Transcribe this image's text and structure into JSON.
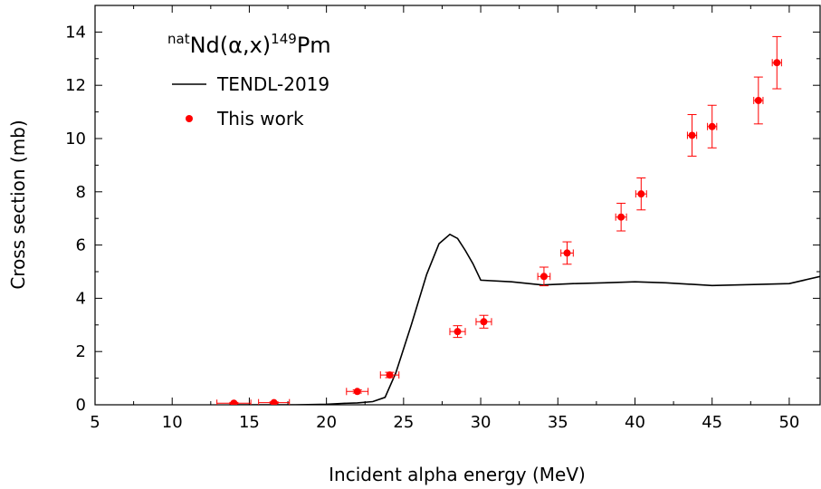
{
  "chart_data": {
    "type": "scatter",
    "title": {
      "pre_sup": "nat",
      "main1": "Nd(α,x)",
      "mid_sup": "149",
      "main2": "Pm"
    },
    "xlabel": "Incident alpha energy (MeV)",
    "ylabel": "Cross section (mb)",
    "xlim": [
      5,
      52
    ],
    "ylim": [
      0,
      15
    ],
    "x_ticks": [
      5,
      10,
      15,
      20,
      25,
      30,
      35,
      40,
      45,
      50
    ],
    "y_ticks": [
      0,
      2,
      4,
      6,
      8,
      10,
      12,
      14
    ],
    "grid": false,
    "legend_position": "top-left",
    "series": [
      {
        "name": "TENDL-2019",
        "kind": "line",
        "color": "#000000",
        "x": [
          14,
          16,
          18,
          20,
          21,
          22,
          23,
          23.8,
          24.5,
          25.5,
          26.5,
          27.3,
          28,
          28.5,
          29,
          29.5,
          30,
          32,
          34,
          36,
          38,
          40,
          42,
          45,
          48,
          50,
          52
        ],
        "y": [
          0,
          0,
          0,
          0.02,
          0.05,
          0.07,
          0.12,
          0.28,
          1.2,
          3.0,
          4.9,
          6.05,
          6.4,
          6.25,
          5.8,
          5.3,
          4.68,
          4.62,
          4.5,
          4.55,
          4.58,
          4.62,
          4.58,
          4.48,
          4.52,
          4.55,
          4.82
        ]
      },
      {
        "name": "This work",
        "kind": "points",
        "color": "#ff0000",
        "points": [
          {
            "x": 14.0,
            "y": 0.06,
            "xerr": 1.1,
            "yerr": 0.03
          },
          {
            "x": 16.6,
            "y": 0.08,
            "xerr": 1.0,
            "yerr": 0.03
          },
          {
            "x": 22.0,
            "y": 0.5,
            "xerr": 0.7,
            "yerr": 0.06
          },
          {
            "x": 24.1,
            "y": 1.12,
            "xerr": 0.6,
            "yerr": 0.1
          },
          {
            "x": 28.5,
            "y": 2.75,
            "xerr": 0.5,
            "yerr": 0.22
          },
          {
            "x": 30.2,
            "y": 3.12,
            "xerr": 0.5,
            "yerr": 0.24
          },
          {
            "x": 34.1,
            "y": 4.82,
            "xerr": 0.4,
            "yerr": 0.35
          },
          {
            "x": 35.6,
            "y": 5.7,
            "xerr": 0.4,
            "yerr": 0.42
          },
          {
            "x": 39.1,
            "y": 7.05,
            "xerr": 0.35,
            "yerr": 0.52
          },
          {
            "x": 40.4,
            "y": 7.92,
            "xerr": 0.35,
            "yerr": 0.6
          },
          {
            "x": 43.7,
            "y": 10.12,
            "xerr": 0.3,
            "yerr": 0.78
          },
          {
            "x": 45.0,
            "y": 10.45,
            "xerr": 0.3,
            "yerr": 0.8
          },
          {
            "x": 48.0,
            "y": 11.43,
            "xerr": 0.3,
            "yerr": 0.88
          },
          {
            "x": 49.2,
            "y": 12.85,
            "xerr": 0.3,
            "yerr": 0.98
          }
        ]
      }
    ]
  }
}
